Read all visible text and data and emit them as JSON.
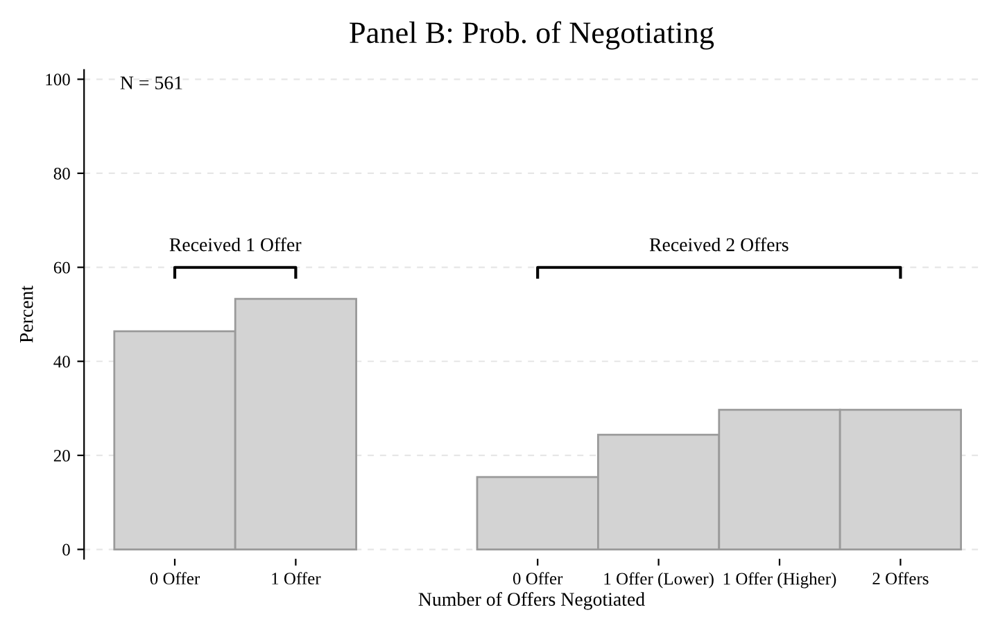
{
  "chart_data": {
    "type": "bar",
    "title": "Panel B: Prob. of Negotiating",
    "xlabel": "Number of Offers Negotiated",
    "ylabel": "Percent",
    "categories": [
      "0 Offer",
      "1 Offer",
      null,
      "0 Offer",
      "1 Offer (Lower)",
      "1 Offer (Higher)",
      "2 Offers"
    ],
    "values": [
      46.4,
      53.3,
      null,
      15.4,
      24.4,
      29.7,
      29.7
    ],
    "color": "#d3d3d3",
    "ylim": [
      -2,
      102
    ],
    "yticks": [
      0,
      20,
      40,
      60,
      80,
      100
    ],
    "grid": "y",
    "annotations": [
      "Received 1 Offer",
      "Received 2 Offers",
      "N = 561"
    ]
  }
}
